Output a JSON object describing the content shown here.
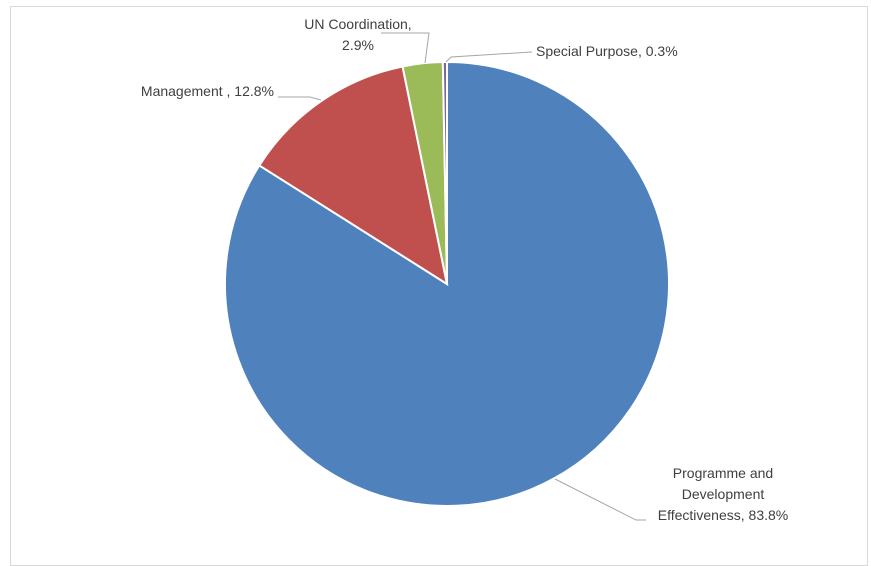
{
  "chart_data": {
    "type": "pie",
    "title": "",
    "legend": "none",
    "slices": [
      {
        "name": "Programme and Development Effectiveness",
        "value": 83.8,
        "color": "#4f81bd",
        "label_lines": [
          "Programme and",
          "Development",
          "Effectiveness, 83.8%"
        ]
      },
      {
        "name": "Management",
        "value": 12.8,
        "color": "#c0504d",
        "label_lines": [
          "Management , 12.8%"
        ]
      },
      {
        "name": "UN Coordination",
        "value": 2.9,
        "color": "#9bbb59",
        "label_lines": [
          "UN Coordination,",
          "2.9%"
        ]
      },
      {
        "name": "Special Purpose",
        "value": 0.3,
        "color": "#8064a2",
        "label_lines": [
          "Special Purpose, 0.3%"
        ]
      }
    ]
  }
}
